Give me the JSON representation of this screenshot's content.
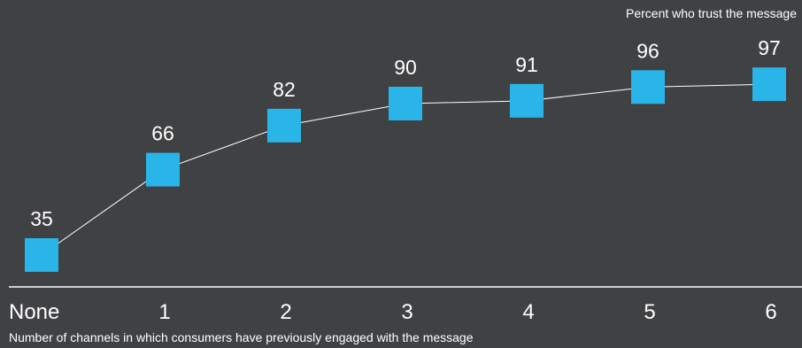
{
  "chart_data": {
    "type": "line",
    "categories": [
      "None",
      "1",
      "2",
      "3",
      "4",
      "5",
      "6"
    ],
    "series": [
      {
        "name": "Percent who trust the message",
        "values": [
          35,
          66,
          82,
          90,
          91,
          96,
          97
        ]
      }
    ],
    "xlabel": "Number of channels in which consumers have previously engaged with the message",
    "ylabel": "",
    "legend": "top-right",
    "grid": false,
    "colors": {
      "background": "#404143",
      "marker": "#29b5e8",
      "line": "#ffffff",
      "text": "#ffffff"
    }
  }
}
